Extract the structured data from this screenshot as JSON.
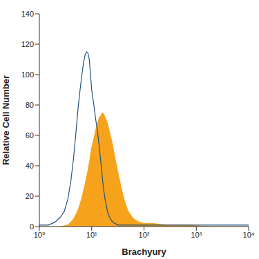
{
  "chart_data": {
    "type": "histogram",
    "x_label": "Brachyury",
    "y_label": "Relative Cell Number",
    "log": "x",
    "grid": false,
    "xlim": [
      1,
      10000
    ],
    "xticks": [
      {
        "value": 1,
        "label": "10⁰"
      },
      {
        "value": 10,
        "label": "10¹"
      },
      {
        "value": 100,
        "label": "10²"
      },
      {
        "value": 1000,
        "label": "10³"
      },
      {
        "value": 10000,
        "label": "10⁴"
      }
    ],
    "ylim": [
      0,
      140
    ],
    "yticks": [
      0,
      20,
      40,
      60,
      80,
      100,
      120,
      140
    ],
    "x": [
      1,
      1.5,
      2,
      2.5,
      3,
      3.5,
      4,
      4.5,
      5,
      5.5,
      6,
      6.5,
      7,
      7.5,
      8,
      8.5,
      9,
      10,
      11,
      12,
      13,
      14,
      15,
      16,
      17,
      18,
      20,
      22,
      25,
      28,
      32,
      36,
      40,
      45,
      50,
      60,
      70,
      80,
      100,
      150,
      200,
      300,
      500,
      700,
      1000,
      2000,
      5000,
      10000
    ],
    "series": [
      {
        "type": "area",
        "color": "#f7a21b",
        "values": [
          0,
          0,
          0,
          0,
          0.5,
          1,
          3,
          5,
          8,
          11,
          15,
          19,
          24,
          28,
          33,
          37,
          42,
          52,
          58,
          64,
          68,
          72,
          73,
          75,
          74,
          72,
          68,
          62,
          54,
          45,
          35,
          27,
          20,
          14,
          10,
          6,
          4,
          3,
          2,
          2,
          1.5,
          1,
          1,
          1,
          0.5,
          0,
          0,
          0
        ]
      },
      {
        "type": "line",
        "color": "#24527e",
        "values": [
          1,
          1,
          3,
          6,
          10,
          18,
          30,
          45,
          62,
          78,
          90,
          100,
          108,
          113,
          115,
          114,
          110,
          90,
          80,
          70,
          62,
          52,
          42,
          32,
          24,
          18,
          10,
          6,
          3,
          2,
          1,
          1,
          1,
          1,
          1,
          1,
          1,
          1,
          1,
          1,
          1,
          1,
          1,
          1,
          1,
          1,
          1,
          1
        ]
      }
    ]
  }
}
